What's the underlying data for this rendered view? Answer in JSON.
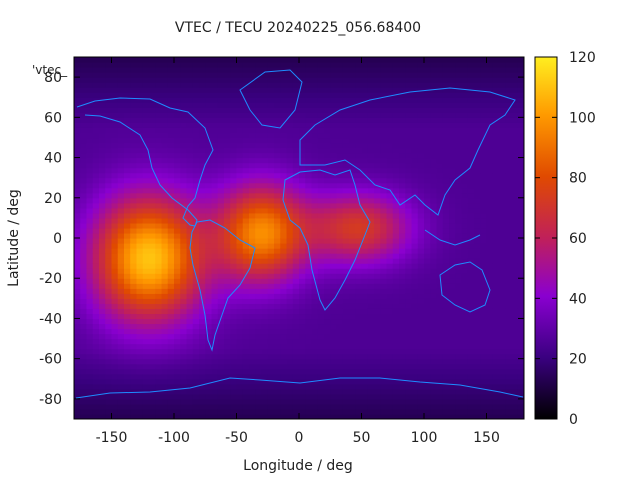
{
  "chart_data": {
    "type": "heatmap",
    "title": "VTEC / TECU 20240225_056.68400",
    "xlabel": "Longitude / deg",
    "ylabel": "Latitude / deg",
    "xlim": [
      -180,
      180
    ],
    "ylim": [
      -90,
      90
    ],
    "xticks": [
      -150,
      -100,
      -50,
      0,
      50,
      100,
      150
    ],
    "yticks": [
      -80,
      -60,
      -40,
      -20,
      0,
      20,
      40,
      60,
      80
    ],
    "colorbar": {
      "range": [
        0,
        120
      ],
      "ticks": [
        0,
        20,
        40,
        60,
        80,
        100,
        120
      ],
      "palette": [
        "#000000",
        "#3a0080",
        "#8a00d0",
        "#c0205a",
        "#e04a00",
        "#ff9a00",
        "#ffee20"
      ]
    },
    "legend_label": "'vtec_",
    "grid": false,
    "enhancement_regions": [
      {
        "lon_range": [
          -170,
          -70
        ],
        "lat_range": [
          -45,
          25
        ],
        "peak_vtec": 110
      },
      {
        "lon_range": [
          -70,
          10
        ],
        "lat_range": [
          -25,
          30
        ],
        "peak_vtec": 95
      },
      {
        "lon_range": [
          0,
          95
        ],
        "lat_range": [
          -15,
          25
        ],
        "peak_vtec": 72
      }
    ],
    "background_vtec": 25,
    "polar_vtec": 15,
    "overlay": "coastlines"
  }
}
